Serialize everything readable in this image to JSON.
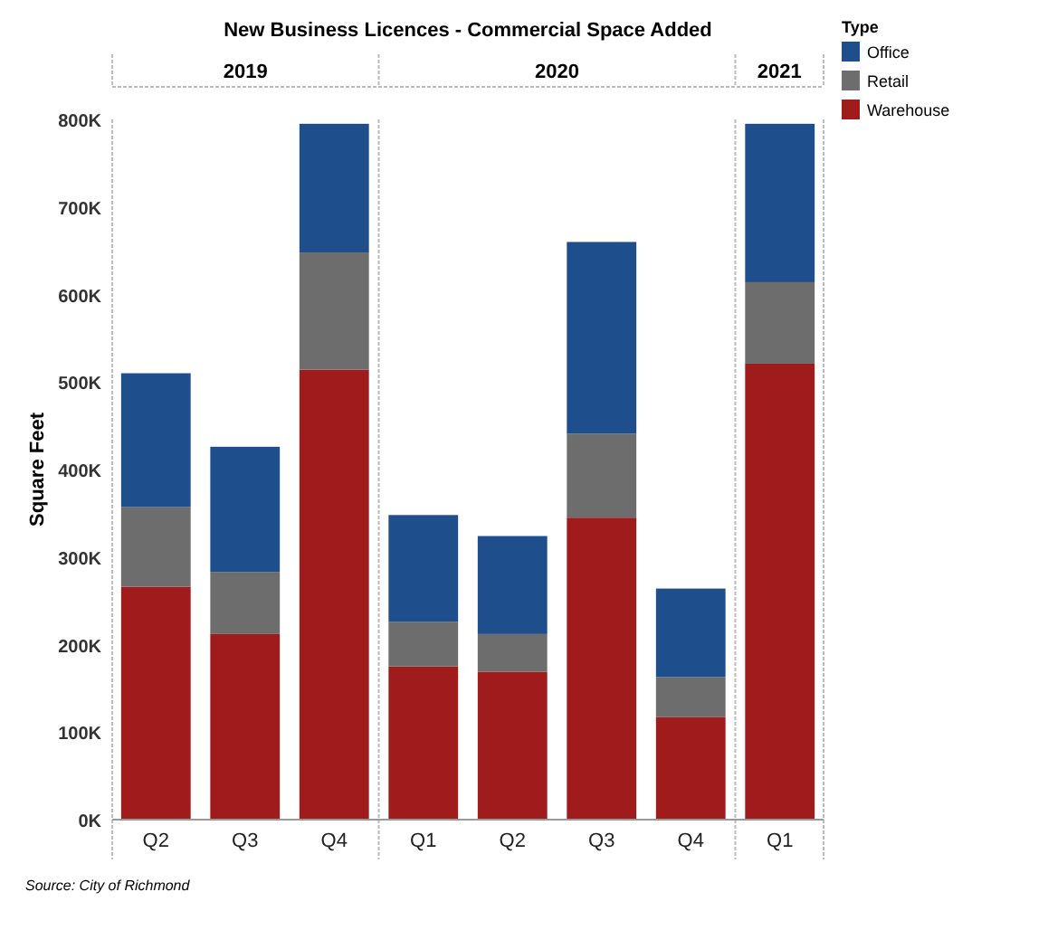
{
  "chart_data": {
    "type": "bar",
    "stacked": true,
    "title": "New Business Licences - Commercial Space Added",
    "ylabel": "Square Feet",
    "legend_title": "Type",
    "legend": "top right",
    "categories": [
      "Q2",
      "Q3",
      "Q4",
      "Q1",
      "Q2",
      "Q3",
      "Q4",
      "Q1"
    ],
    "series": [
      {
        "name": "Warehouse",
        "color": "#a01c1c",
        "values": [
          266000,
          212000,
          514000,
          175000,
          169000,
          345000,
          117000,
          521000
        ]
      },
      {
        "name": "Retail",
        "color": "#6d6d6d",
        "values": [
          91000,
          71000,
          134000,
          51000,
          43000,
          96000,
          46000,
          93000
        ]
      },
      {
        "name": "Office",
        "color": "#1f4e8c",
        "values": [
          153000,
          143000,
          147000,
          122000,
          112000,
          219000,
          101000,
          181000
        ]
      }
    ],
    "ylim": [
      0,
      800000
    ],
    "yticks": [
      {
        "value": 0,
        "label": "0K"
      },
      {
        "value": 100000,
        "label": "100K"
      },
      {
        "value": 200000,
        "label": "200K"
      },
      {
        "value": 300000,
        "label": "300K"
      },
      {
        "value": 400000,
        "label": "400K"
      },
      {
        "value": 500000,
        "label": "500K"
      },
      {
        "value": 600000,
        "label": "600K"
      },
      {
        "value": 700000,
        "label": "700K"
      },
      {
        "value": 800000,
        "label": "800K"
      }
    ],
    "annotations": [
      "2019",
      "2020",
      "2021",
      "Source: City of Richmond"
    ]
  }
}
